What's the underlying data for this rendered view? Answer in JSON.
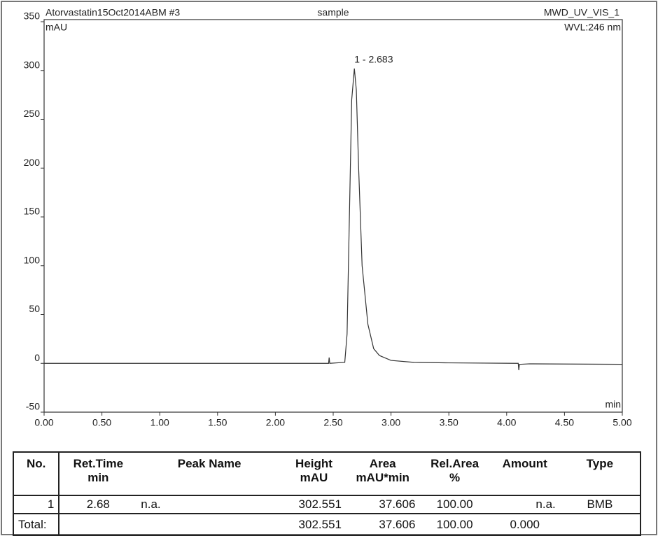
{
  "chart_data": {
    "type": "line",
    "title": "Atorvastatin15Oct2014ABM #3",
    "subtitle": "sample",
    "detector": "MWD_UV_VIS_1",
    "wavelength": "WVL:246 nm",
    "y_label": "mAU",
    "x_label": "min",
    "annotations": [
      {
        "text": "1 - 2.683",
        "x": 2.683,
        "y": 302
      }
    ],
    "x": [
      0,
      2.0,
      2.46,
      2.465,
      2.47,
      2.6,
      2.62,
      2.64,
      2.66,
      2.683,
      2.7,
      2.72,
      2.75,
      2.8,
      2.85,
      2.9,
      3.0,
      3.2,
      3.5,
      4.1,
      4.105,
      4.11,
      4.2,
      5.0
    ],
    "series": [
      {
        "name": "MWD_UV_VIS_1",
        "color": "#333333",
        "values": [
          0,
          0,
          0,
          6,
          0,
          1,
          30,
          150,
          270,
          302,
          280,
          200,
          100,
          40,
          15,
          8,
          3,
          1,
          0.5,
          0,
          -7,
          -1,
          -0.5,
          -1
        ]
      }
    ],
    "xlim": [
      0,
      5
    ],
    "ylim": [
      -50,
      350
    ],
    "xticks": [
      {
        "value": 0,
        "label": "0.00"
      },
      {
        "value": 0.5,
        "label": "0.50"
      },
      {
        "value": 1,
        "label": "1.00"
      },
      {
        "value": 1.5,
        "label": "1.50"
      },
      {
        "value": 2,
        "label": "2.00"
      },
      {
        "value": 2.5,
        "label": "2.50"
      },
      {
        "value": 3,
        "label": "3.00"
      },
      {
        "value": 3.5,
        "label": "3.50"
      },
      {
        "value": 4,
        "label": "4.00"
      },
      {
        "value": 4.5,
        "label": "4.50"
      },
      {
        "value": 5,
        "label": "5.00"
      }
    ],
    "yticks": [
      -50,
      0,
      50,
      100,
      150,
      200,
      250,
      300,
      350
    ],
    "grid": false
  },
  "table": {
    "headers": [
      [
        "No."
      ],
      [
        "Ret.Time",
        "min"
      ],
      [
        "Peak Name"
      ],
      [
        "Height",
        "mAU"
      ],
      [
        "Area",
        "mAU*min"
      ],
      [
        "Rel.Area",
        "%"
      ],
      [
        "Amount"
      ],
      [
        "Type"
      ]
    ],
    "rows": [
      [
        "1",
        "2.68",
        "n.a.",
        "302.551",
        "37.606",
        "100.00",
        "n.a.",
        "BMB"
      ]
    ],
    "total": {
      "label": "Total:",
      "height": "302.551",
      "area": "37.606",
      "rel_area": "100.00",
      "amount": "0.000"
    }
  }
}
